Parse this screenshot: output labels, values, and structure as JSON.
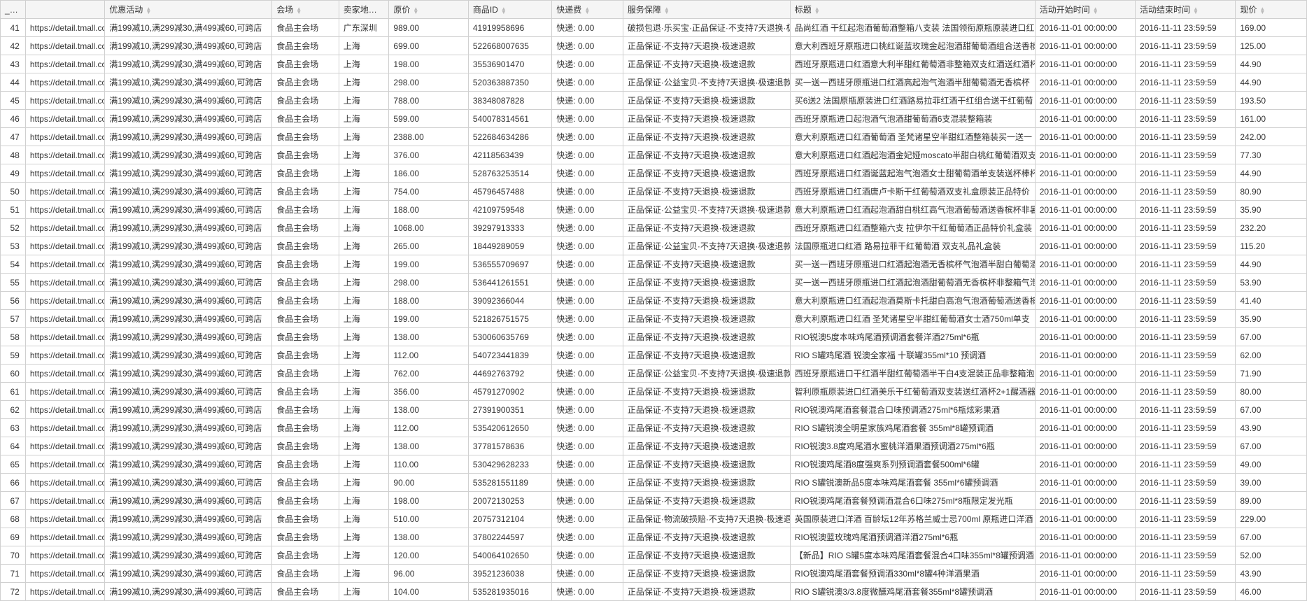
{
  "columns": [
    {
      "key": "id",
      "label": "_id",
      "cls": "col-id"
    },
    {
      "key": "link",
      "label": "",
      "cls": "col-link"
    },
    {
      "key": "promo",
      "label": "优惠活动",
      "cls": "col-promo"
    },
    {
      "key": "venue",
      "label": "会场",
      "cls": "col-venue"
    },
    {
      "key": "addr",
      "label": "卖家地址",
      "cls": "col-addr"
    },
    {
      "key": "price",
      "label": "原价",
      "cls": "col-price"
    },
    {
      "key": "pid",
      "label": "商品ID",
      "cls": "col-pid"
    },
    {
      "key": "ship",
      "label": "快递费",
      "cls": "col-ship"
    },
    {
      "key": "service",
      "label": "服务保障",
      "cls": "col-service"
    },
    {
      "key": "title",
      "label": "标题",
      "cls": "col-title"
    },
    {
      "key": "start",
      "label": "活动开始时间",
      "cls": "col-start"
    },
    {
      "key": "end",
      "label": "活动结束时间",
      "cls": "col-end"
    },
    {
      "key": "now",
      "label": "现价",
      "cls": "col-now"
    }
  ],
  "common": {
    "link": "https://detail.tmall.com",
    "promo": "满199减10,满299减30,满499减60,可跨店",
    "venue": "食品主会场",
    "ship": "快递: 0.00",
    "start": "2016-11-01 00:00:00",
    "end": "2016-11-11 23:59:59"
  },
  "rows": [
    {
      "id": 41,
      "addr": "广东深圳",
      "price": "989.00",
      "pid": "41919958696",
      "service": "破损包退·乐买宝·正品保证·不支持7天退换·极",
      "title": "品尚红酒 干红起泡酒葡萄酒整箱八支装 法国领衔原瓶原装进口红",
      "now": "169.00"
    },
    {
      "id": 42,
      "addr": "上海",
      "price": "699.00",
      "pid": "522668007635",
      "service": "正品保证·不支持7天退换·极速退款",
      "title": "意大利西班牙原瓶进口桃红诞蓝玫瑰金起泡酒甜葡萄酒组合送香槟",
      "now": "125.00"
    },
    {
      "id": 43,
      "addr": "上海",
      "price": "198.00",
      "pid": "35536901470",
      "service": "正品保证·不支持7天退换·极速退款",
      "title": "西班牙原瓶进口红酒意大利半甜红葡萄酒非整箱双支红酒送红酒杯",
      "now": "44.90"
    },
    {
      "id": 44,
      "addr": "上海",
      "price": "298.00",
      "pid": "520363887350",
      "service": "正品保证·公益宝贝·不支持7天退换·极速退款",
      "title": "买一送一西班牙原瓶进口红酒高起泡气泡酒半甜葡萄酒无香槟杯",
      "now": "44.90"
    },
    {
      "id": 45,
      "addr": "上海",
      "price": "788.00",
      "pid": "38348087828",
      "service": "正品保证·不支持7天退换·极速退款",
      "title": "买6送2 法国原瓶原装进口红酒路易拉菲红酒干红组合送干红葡萄",
      "now": "193.50"
    },
    {
      "id": 46,
      "addr": "上海",
      "price": "599.00",
      "pid": "540078314561",
      "service": "正品保证·不支持7天退换·极速退款",
      "title": "西班牙原瓶进口起泡酒气泡酒甜葡萄酒6支混装整箱装",
      "now": "161.00"
    },
    {
      "id": 47,
      "addr": "上海",
      "price": "2388.00",
      "pid": "522684634286",
      "service": "正品保证·不支持7天退换·极速退款",
      "title": "意大利原瓶进口红酒葡萄酒 圣梵诸星空半甜红酒整箱装买一送一",
      "now": "242.00"
    },
    {
      "id": 48,
      "addr": "上海",
      "price": "376.00",
      "pid": "42118563439",
      "service": "正品保证·不支持7天退换·极速退款",
      "title": "意大利原瓶进口红酒起泡酒金妃娅moscato半甜白桃红葡萄酒双支",
      "now": "77.30"
    },
    {
      "id": 49,
      "addr": "上海",
      "price": "186.00",
      "pid": "528763253514",
      "service": "正品保证·不支持7天退换·极速退款",
      "title": "西班牙原瓶进口红酒诞蓝起泡气泡酒女士甜葡萄酒单支装送杯棒杯",
      "now": "44.90"
    },
    {
      "id": 50,
      "addr": "上海",
      "price": "754.00",
      "pid": "45796457488",
      "service": "正品保证·不支持7天退换·极速退款",
      "title": "西班牙原瓶进口红酒唐卢卡斯干红葡萄酒双支礼盒原装正品特价",
      "now": "80.90"
    },
    {
      "id": 51,
      "addr": "上海",
      "price": "188.00",
      "pid": "42109759548",
      "service": "正品保证·公益宝贝·不支持7天退换·极速退款",
      "title": "意大利原瓶进口红酒起泡酒甜白桃红高气泡酒葡萄酒送香槟杯非暑",
      "now": "35.90"
    },
    {
      "id": 52,
      "addr": "上海",
      "price": "1068.00",
      "pid": "39297913333",
      "service": "正品保证·不支持7天退换·极速退款",
      "title": "西班牙原瓶进口红酒整箱六支 拉伊尔干红葡萄酒正品特价礼盒装",
      "now": "232.20"
    },
    {
      "id": 53,
      "addr": "上海",
      "price": "265.00",
      "pid": "18449289059",
      "service": "正品保证·公益宝贝·不支持7天退换·极速退款",
      "title": "法国原瓶进口红酒 路易拉菲干红葡萄酒 双支礼品礼盒装",
      "now": "115.20"
    },
    {
      "id": 54,
      "addr": "上海",
      "price": "199.00",
      "pid": "536555709697",
      "service": "正品保证·不支持7天退换·极速退款",
      "title": "买一送一西班牙原瓶进口红酒起泡酒无香槟杯气泡酒半甜白葡萄酒",
      "now": "44.90"
    },
    {
      "id": 55,
      "addr": "上海",
      "price": "298.00",
      "pid": "536441261551",
      "service": "正品保证·不支持7天退换·极速退款",
      "title": "买一送一西班牙原瓶进口红酒起泡酒甜葡萄酒无香槟杯非整箱气泡",
      "now": "53.90"
    },
    {
      "id": 56,
      "addr": "上海",
      "price": "188.00",
      "pid": "39092366044",
      "service": "正品保证·不支持7天退换·极速退款",
      "title": "意大利原瓶进口红酒起泡酒莫斯卡托甜白高泡气泡酒葡萄酒送香槟",
      "now": "41.40"
    },
    {
      "id": 57,
      "addr": "上海",
      "price": "199.00",
      "pid": "521826751575",
      "service": "正品保证·不支持7天退换·极速退款",
      "title": "意大利原瓶进口红酒 圣梵诸星空半甜红葡萄酒女士酒750ml单支",
      "now": "35.90"
    },
    {
      "id": 58,
      "addr": "上海",
      "price": "138.00",
      "pid": "530060635769",
      "service": "正品保证·不支持7天退换·极速退款",
      "title": "RIO锐澳5度本味鸡尾酒预调酒套餐洋酒275ml*6瓶",
      "now": "67.00"
    },
    {
      "id": 59,
      "addr": "上海",
      "price": "112.00",
      "pid": "540723441839",
      "service": "正品保证·不支持7天退换·极速退款",
      "title": "RIO S罐鸡尾酒 锐澳全家福 十联罐355ml*10 预调酒",
      "now": "62.00"
    },
    {
      "id": 60,
      "addr": "上海",
      "price": "762.00",
      "pid": "44692763792",
      "service": "正品保证·公益宝贝·不支持7天退换·极速退款",
      "title": "西班牙原瓶进口干红酒半甜红葡萄酒半干白4支混装正品非整箱泡",
      "now": "71.90"
    },
    {
      "id": 61,
      "addr": "上海",
      "price": "356.00",
      "pid": "45791270902",
      "service": "正品保证·不支持7天退换·极速退款",
      "title": "智利原瓶原装进口红酒美乐干红葡萄酒双支装送红酒杯2+1醒酒器1",
      "now": "80.00"
    },
    {
      "id": 62,
      "addr": "上海",
      "price": "138.00",
      "pid": "27391900351",
      "service": "正品保证·不支持7天退换·极速退款",
      "title": "RIO锐澳鸡尾酒套餐混合口味预调酒275ml*6瓶炫彩果酒",
      "now": "67.00"
    },
    {
      "id": 63,
      "addr": "上海",
      "price": "112.00",
      "pid": "535420612650",
      "service": "正品保证·不支持7天退换·极速退款",
      "title": "RIO S罐锐澳全明星家族鸡尾酒套餐 355ml*8罐预调酒",
      "now": "43.90"
    },
    {
      "id": 64,
      "addr": "上海",
      "price": "138.00",
      "pid": "37781578636",
      "service": "正品保证·不支持7天退换·极速退款",
      "title": "RIO锐澳3.8度鸡尾酒水蜜桃洋酒果酒预调酒275ml*6瓶",
      "now": "67.00"
    },
    {
      "id": 65,
      "addr": "上海",
      "price": "110.00",
      "pid": "530429628233",
      "service": "正品保证·不支持7天退换·极速退款",
      "title": "RIO锐澳鸡尾酒8度强爽系列预调酒套餐500ml*6罐",
      "now": "49.00"
    },
    {
      "id": 66,
      "addr": "上海",
      "price": "90.00",
      "pid": "535281551189",
      "service": "正品保证·不支持7天退换·极速退款",
      "title": "RIO S罐锐澳新品5度本味鸡尾酒套餐 355ml*6罐预调酒",
      "now": "39.00"
    },
    {
      "id": 67,
      "addr": "上海",
      "price": "198.00",
      "pid": "20072130253",
      "service": "正品保证·不支持7天退换·极速退款",
      "title": "RIO锐澳鸡尾酒套餐预调酒混合6口味275ml*8瓶限定发光瓶",
      "now": "89.00"
    },
    {
      "id": 68,
      "addr": "上海",
      "price": "510.00",
      "pid": "20757312104",
      "service": "正品保证·物流破损赔·不支持7天退换·极速退",
      "title": "英国原装进口洋酒 百龄坛12年苏格兰威士忌700ml 原瓶进口洋酒",
      "now": "229.00"
    },
    {
      "id": 69,
      "addr": "上海",
      "price": "138.00",
      "pid": "37802244597",
      "service": "正品保证·不支持7天退换·极速退款",
      "title": "RIO锐澳蓝玫瑰鸡尾酒预调酒洋酒275ml*6瓶",
      "now": "67.00"
    },
    {
      "id": 70,
      "addr": "上海",
      "price": "120.00",
      "pid": "540064102650",
      "service": "正品保证·不支持7天退换·极速退款",
      "title": "【新品】RIO S罐5度本味鸡尾酒套餐混合4口味355ml*8罐预调酒",
      "now": "52.00"
    },
    {
      "id": 71,
      "addr": "上海",
      "price": "96.00",
      "pid": "39521236038",
      "service": "正品保证·不支持7天退换·极速退款",
      "title": "RIO锐澳鸡尾酒套餐预调酒330ml*8罐4种洋酒果酒",
      "now": "43.90"
    },
    {
      "id": 72,
      "addr": "上海",
      "price": "104.00",
      "pid": "535281935016",
      "service": "正品保证·不支持7天退换·极速退款",
      "title": "RIO S罐锐澳3/3.8度微醺鸡尾酒套餐355ml*8罐预调酒",
      "now": "46.00"
    }
  ],
  "colors": {
    "border": "#d0d0d0",
    "header_bg": "#f5f5f5",
    "text": "#333333",
    "sort_icon": "#bbbbbb"
  }
}
